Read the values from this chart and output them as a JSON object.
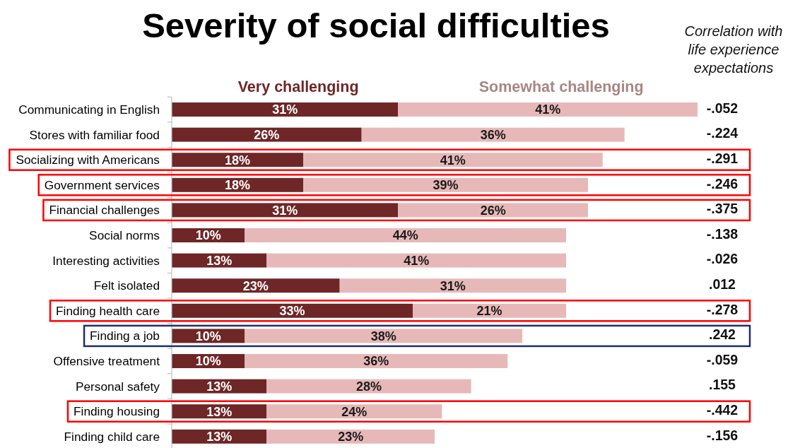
{
  "chart_data": {
    "type": "bar",
    "orientation": "horizontal",
    "stacked": true,
    "title": "Severity of social difficulties",
    "categories": [
      "Communicating in English",
      "Stores with familiar food",
      "Socializing with Americans",
      "Government services",
      "Financial challenges",
      "Social norms",
      "Interesting activities",
      "Felt isolated",
      "Finding health care",
      "Finding a job",
      "Offensive treatment",
      "Personal safety",
      "Finding housing",
      "Finding child care"
    ],
    "series": [
      {
        "name": "Very challenging",
        "color": "#6e2626",
        "values": [
          31,
          26,
          18,
          18,
          31,
          10,
          13,
          23,
          33,
          10,
          10,
          13,
          13,
          13
        ],
        "value_labels": [
          "31%",
          "26%",
          "18%",
          "18%",
          "31%",
          "10%",
          "13%",
          "23%",
          "33%",
          "10%",
          "10%",
          "13%",
          "13%",
          "13%"
        ]
      },
      {
        "name": "Somewhat challenging",
        "color": "#e6b9b8",
        "values": [
          41,
          36,
          41,
          39,
          26,
          44,
          41,
          31,
          21,
          38,
          36,
          28,
          24,
          23
        ],
        "value_labels": [
          "41%",
          "36%",
          "41%",
          "39%",
          "26%",
          "44%",
          "41%",
          "31%",
          "21%",
          "38%",
          "36%",
          "28%",
          "24%",
          "23%"
        ]
      }
    ],
    "legend": "top",
    "annotations": [
      "Correlation with life experience expectations",
      "-.052",
      "-.224",
      "-.291",
      "-.246",
      "-.375",
      "-.138",
      "-.026",
      ".012",
      "-.278",
      ".242",
      "-.059",
      ".155",
      "-.442",
      "-.156"
    ]
  }
}
